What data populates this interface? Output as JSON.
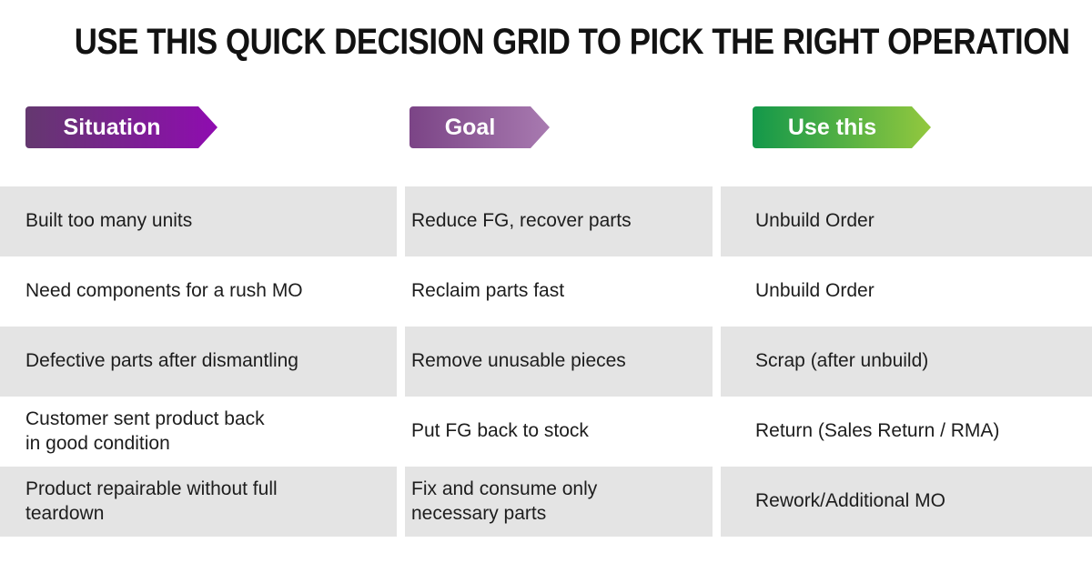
{
  "title": "USE THIS QUICK DECISION GRID TO PICK THE RIGHT OPERATION",
  "columns": [
    {
      "label": "Situation",
      "gradient_start": "#64386f",
      "gradient_end": "#8f0cb0"
    },
    {
      "label": "Goal",
      "gradient_start": "#7b4486",
      "gradient_end": "#a87ab0"
    },
    {
      "label": "Use this",
      "gradient_start": "#13984a",
      "gradient_end": "#93c83e"
    }
  ],
  "rows": [
    {
      "situation": "Built too many units",
      "goal": "Reduce FG, recover parts",
      "use_this": "Unbuild Order"
    },
    {
      "situation": "Need components for a rush MO",
      "goal": "Reclaim parts fast",
      "use_this": "Unbuild Order"
    },
    {
      "situation": "Defective parts after dismantling",
      "goal": "Remove unusable pieces",
      "use_this": "Scrap (after unbuild)"
    },
    {
      "situation": "Customer sent product back\nin good condition",
      "goal": "Put FG back to stock",
      "use_this": "Return (Sales Return / RMA)"
    },
    {
      "situation": "Product repairable without full\nteardown",
      "goal": "Fix and consume only\nnecessary parts",
      "use_this": "Rework/Additional MO"
    }
  ],
  "colors": {
    "background": "#ffffff",
    "row_stripe": "#e4e4e4",
    "title_text": "#121212",
    "body_text": "#1d1d1d",
    "badge_text": "#ffffff"
  }
}
